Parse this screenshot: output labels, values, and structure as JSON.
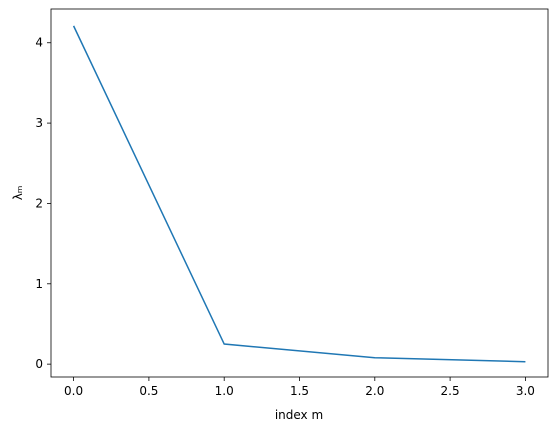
{
  "chart_data": {
    "type": "line",
    "x_label": "index m",
    "y_label": "λₘ",
    "x": [
      0,
      1,
      2,
      3
    ],
    "series": [
      {
        "color": "#1f77b4",
        "values": [
          4.21,
          0.25,
          0.08,
          0.03
        ]
      }
    ],
    "xlim": [
      -0.15,
      3.15
    ],
    "ylim": [
      -0.16,
      4.42
    ],
    "xticks": [
      {
        "value": 0,
        "label": "0.0"
      },
      {
        "value": 0.5,
        "label": "0.5"
      },
      {
        "value": 1,
        "label": "1.0"
      },
      {
        "value": 1.5,
        "label": "1.5"
      },
      {
        "value": 2,
        "label": "2.0"
      },
      {
        "value": 2.5,
        "label": "2.5"
      },
      {
        "value": 3,
        "label": "3.0"
      }
    ],
    "yticks": [
      0,
      1,
      2,
      3,
      4
    ]
  }
}
